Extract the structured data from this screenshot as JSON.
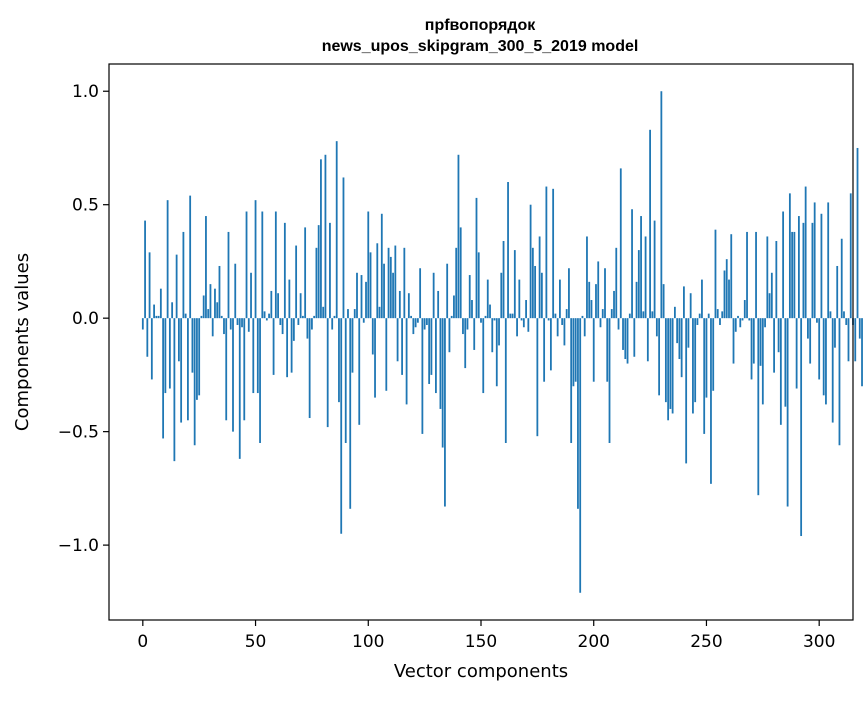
{
  "chart_data": {
    "type": "bar",
    "title": "прfвопорядок",
    "subtitle": "news_upos_skipgram_300_5_2019 model",
    "xlabel": "Vector components",
    "ylabel": "Components values",
    "xlim": [
      -15,
      315
    ],
    "ylim": [
      -1.33,
      1.12
    ],
    "xticks": [
      0,
      50,
      100,
      150,
      200,
      250,
      300
    ],
    "yticks": [
      -1.0,
      -0.5,
      0.0,
      0.5,
      1.0
    ],
    "xtick_labels": [
      "0",
      "50",
      "100",
      "150",
      "200",
      "250",
      "300"
    ],
    "ytick_labels": [
      "−1.0",
      "−0.5",
      "0.0",
      "0.5",
      "1.0"
    ],
    "bar_color": "#1f77b4",
    "values": [
      -0.05,
      0.43,
      -0.17,
      0.29,
      -0.27,
      0.06,
      0.01,
      0.01,
      0.13,
      -0.53,
      -0.33,
      0.52,
      -0.31,
      0.07,
      -0.63,
      0.28,
      -0.19,
      -0.46,
      0.38,
      0.02,
      -0.45,
      0.54,
      -0.24,
      -0.56,
      -0.36,
      -0.34,
      0.01,
      0.1,
      0.45,
      0.04,
      0.15,
      -0.08,
      0.13,
      0.07,
      0.23,
      0.01,
      -0.07,
      -0.45,
      0.38,
      -0.05,
      -0.5,
      0.24,
      -0.03,
      -0.62,
      -0.04,
      -0.45,
      0.47,
      -0.06,
      0.2,
      -0.33,
      0.52,
      -0.33,
      -0.55,
      0.47,
      0.03,
      -0.01,
      0.02,
      0.12,
      -0.25,
      0.47,
      0.11,
      -0.03,
      -0.07,
      0.42,
      -0.26,
      0.17,
      -0.24,
      -0.1,
      0.32,
      -0.03,
      0.11,
      0.01,
      0.4,
      -0.09,
      -0.44,
      -0.05,
      0.01,
      0.31,
      0.41,
      0.7,
      0.05,
      0.72,
      -0.48,
      0.42,
      -0.05,
      0.01,
      0.78,
      -0.37,
      -0.95,
      0.62,
      -0.55,
      0.04,
      -0.84,
      -0.24,
      0.04,
      0.2,
      -0.47,
      0.19,
      -0.02,
      0.16,
      0.47,
      0.29,
      -0.16,
      -0.35,
      0.33,
      0.05,
      0.46,
      0.24,
      -0.32,
      0.31,
      0.27,
      0.2,
      0.32,
      -0.19,
      0.12,
      -0.25,
      0.31,
      -0.38,
      0.11,
      0.01,
      -0.07,
      -0.04,
      -0.02,
      0.22,
      -0.51,
      -0.05,
      -0.03,
      -0.29,
      -0.25,
      0.2,
      -0.33,
      0.12,
      -0.4,
      -0.57,
      -0.83,
      0.24,
      -0.15,
      0.01,
      0.1,
      0.31,
      0.72,
      0.4,
      -0.07,
      -0.22,
      -0.05,
      0.19,
      0.08,
      -0.14,
      0.53,
      0.29,
      -0.02,
      -0.33,
      0.01,
      0.17,
      0.06,
      -0.15,
      -0.01,
      -0.3,
      -0.12,
      0.2,
      0.34,
      -0.55,
      0.6,
      0.02,
      0.02,
      0.3,
      -0.08,
      0.17,
      -0.01,
      -0.04,
      0.08,
      -0.06,
      0.5,
      0.31,
      0.23,
      -0.52,
      0.36,
      0.2,
      -0.28,
      0.58,
      -0.01,
      -0.23,
      0.57,
      0.02,
      -0.08,
      0.17,
      -0.03,
      -0.12,
      0.04,
      0.22,
      -0.55,
      -0.3,
      -0.28,
      -0.84,
      -1.21,
      0.01,
      -0.08,
      0.36,
      0.16,
      0.08,
      -0.28,
      0.15,
      0.25,
      -0.04,
      0.04,
      0.22,
      -0.28,
      -0.55,
      0.04,
      0.12,
      0.31,
      -0.05,
      0.66,
      -0.14,
      -0.18,
      -0.2,
      0.02,
      0.48,
      -0.17,
      0.16,
      0.3,
      0.45,
      0.03,
      0.36,
      -0.19,
      0.83,
      0.03,
      0.43,
      -0.08,
      -0.34,
      1.0,
      0.15,
      -0.37,
      -0.45,
      -0.4,
      -0.42,
      0.05,
      -0.11,
      -0.18,
      -0.26,
      0.14,
      -0.64,
      -0.13,
      0.11,
      -0.42,
      -0.37,
      -0.03,
      0.02,
      0.17,
      -0.51,
      -0.35,
      0.02,
      -0.73,
      -0.32,
      0.39,
      0.04,
      -0.03,
      0.03,
      0.21,
      0.26,
      0.17,
      0.37,
      -0.2,
      -0.06,
      0.01,
      -0.04,
      -0.01,
      0.08,
      0.38,
      -0.01,
      -0.27,
      -0.2,
      0.38,
      -0.78,
      -0.21,
      -0.38,
      -0.04,
      0.36,
      0.11,
      0.2,
      -0.24,
      0.34,
      -0.15,
      -0.47,
      0.47,
      -0.39,
      -0.83,
      0.55,
      0.38,
      0.38,
      -0.31,
      0.45,
      -0.96,
      0.42,
      0.58,
      -0.09,
      -0.2,
      0.42,
      0.51,
      -0.02,
      -0.27,
      0.46,
      -0.34,
      -0.38,
      0.51,
      0.03,
      -0.46,
      -0.13,
      0.23,
      -0.56,
      0.35,
      0.03,
      -0.03,
      -0.19,
      0.55,
      -0.03,
      -0.19,
      0.75,
      -0.09,
      -0.3
    ]
  }
}
